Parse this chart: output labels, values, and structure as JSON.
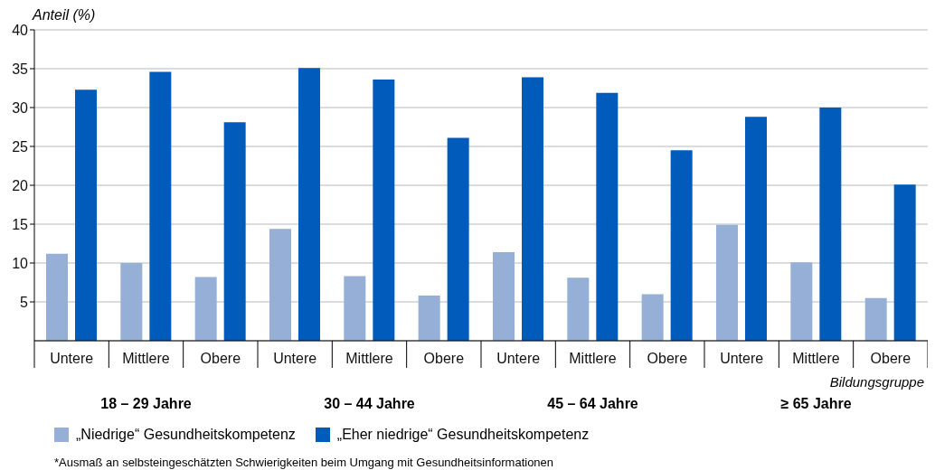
{
  "chart_data": {
    "type": "bar",
    "ylabel": "Anteil (%)",
    "xlabel": "Bildungsgruppe",
    "categories": [
      "Untere",
      "Mittlere",
      "Obere",
      "Untere",
      "Mittlere",
      "Obere",
      "Untere",
      "Mittlere",
      "Obere",
      "Untere",
      "Mittlere",
      "Obere"
    ],
    "series": [
      {
        "name": "„Niedrige“ Gesundheitskompetenz",
        "color": "#95afd6",
        "values": [
          11.2,
          10.0,
          8.2,
          14.4,
          8.3,
          5.8,
          11.4,
          8.1,
          6.0,
          14.9,
          10.1,
          5.5
        ]
      },
      {
        "name": "„Eher niedrige“ Gesundheitskompetenz",
        "color": "#005bba",
        "values": [
          32.3,
          34.6,
          28.1,
          35.1,
          33.6,
          26.1,
          33.9,
          31.9,
          24.5,
          28.8,
          30.0,
          20.1
        ]
      }
    ],
    "ylim": [
      0,
      40
    ],
    "yticks": [
      5,
      10,
      15,
      20,
      25,
      30,
      35,
      40
    ],
    "grid": "y",
    "legend": "bottom",
    "annotations": [
      "18 – 29 Jahre",
      "30 – 44 Jahre",
      "45 – 64 Jahre",
      "≥ 65 Jahre",
      "*Ausmaß an selbsteingeschätzten Schwierigkeiten beim Umgang mit Gesundheitsinformationen"
    ]
  }
}
